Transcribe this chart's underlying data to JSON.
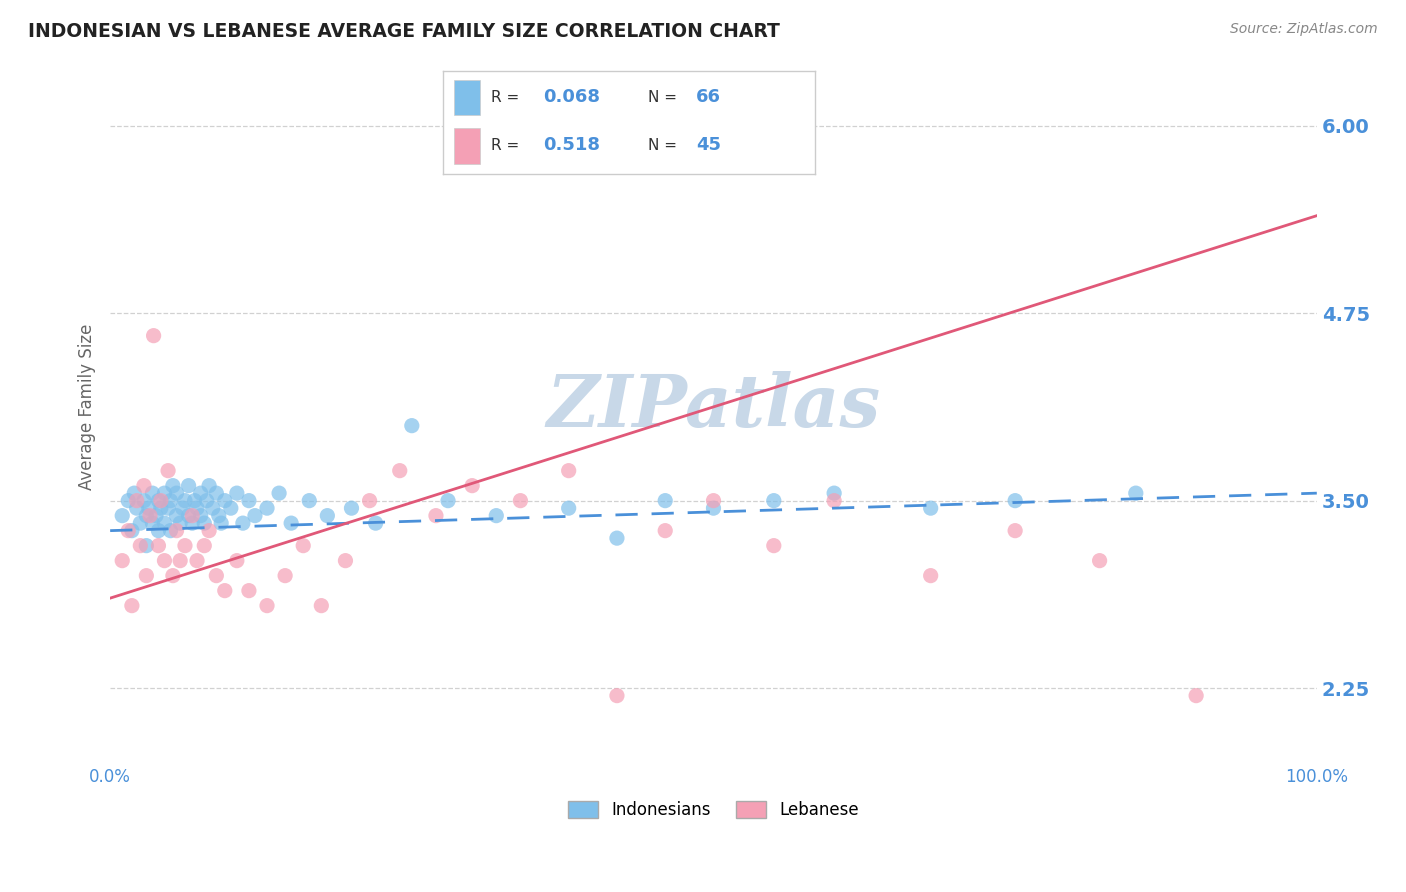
{
  "title": "INDONESIAN VS LEBANESE AVERAGE FAMILY SIZE CORRELATION CHART",
  "source_text": "Source: ZipAtlas.com",
  "ylabel": "Average Family Size",
  "ytick_values": [
    2.25,
    3.5,
    4.75,
    6.0
  ],
  "ytick_labels": [
    "2.25",
    "3.50",
    "4.75",
    "6.00"
  ],
  "xlim": [
    0.0,
    1.0
  ],
  "ylim": [
    1.75,
    6.5
  ],
  "color_blue": "#7fbfea",
  "color_pink": "#f4a0b5",
  "color_blue_line": "#4a90d9",
  "color_pink_line": "#e05878",
  "color_axis_text": "#4a90d9",
  "color_title": "#222222",
  "color_source": "#888888",
  "color_grid": "#cccccc",
  "color_legend_border": "#cccccc",
  "legend_r1": "0.068",
  "legend_n1": "66",
  "legend_r2": "0.518",
  "legend_n2": "45",
  "indonesian_x": [
    0.01,
    0.015,
    0.018,
    0.02,
    0.022,
    0.025,
    0.028,
    0.03,
    0.03,
    0.032,
    0.035,
    0.035,
    0.038,
    0.04,
    0.04,
    0.042,
    0.045,
    0.045,
    0.048,
    0.05,
    0.05,
    0.052,
    0.055,
    0.055,
    0.058,
    0.06,
    0.062,
    0.065,
    0.065,
    0.068,
    0.07,
    0.072,
    0.075,
    0.075,
    0.078,
    0.08,
    0.082,
    0.085,
    0.088,
    0.09,
    0.092,
    0.095,
    0.1,
    0.105,
    0.11,
    0.115,
    0.12,
    0.13,
    0.14,
    0.15,
    0.165,
    0.18,
    0.2,
    0.22,
    0.25,
    0.28,
    0.32,
    0.38,
    0.42,
    0.46,
    0.5,
    0.55,
    0.6,
    0.68,
    0.75,
    0.85
  ],
  "indonesian_y": [
    3.4,
    3.5,
    3.3,
    3.55,
    3.45,
    3.35,
    3.5,
    3.4,
    3.2,
    3.45,
    3.35,
    3.55,
    3.4,
    3.3,
    3.5,
    3.45,
    3.55,
    3.35,
    3.45,
    3.5,
    3.3,
    3.6,
    3.4,
    3.55,
    3.35,
    3.45,
    3.5,
    3.4,
    3.6,
    3.35,
    3.5,
    3.45,
    3.55,
    3.4,
    3.35,
    3.5,
    3.6,
    3.45,
    3.55,
    3.4,
    3.35,
    3.5,
    3.45,
    3.55,
    3.35,
    3.5,
    3.4,
    3.45,
    3.55,
    3.35,
    3.5,
    3.4,
    3.45,
    3.35,
    4.0,
    3.5,
    3.4,
    3.45,
    3.25,
    3.5,
    3.45,
    3.5,
    3.55,
    3.45,
    3.5,
    3.55
  ],
  "lebanese_x": [
    0.01,
    0.015,
    0.018,
    0.022,
    0.025,
    0.028,
    0.03,
    0.033,
    0.036,
    0.04,
    0.042,
    0.045,
    0.048,
    0.052,
    0.055,
    0.058,
    0.062,
    0.068,
    0.072,
    0.078,
    0.082,
    0.088,
    0.095,
    0.105,
    0.115,
    0.13,
    0.145,
    0.16,
    0.175,
    0.195,
    0.215,
    0.24,
    0.27,
    0.3,
    0.34,
    0.38,
    0.42,
    0.46,
    0.5,
    0.55,
    0.6,
    0.68,
    0.75,
    0.82,
    0.9
  ],
  "lebanese_y": [
    3.1,
    3.3,
    2.8,
    3.5,
    3.2,
    3.6,
    3.0,
    3.4,
    4.6,
    3.2,
    3.5,
    3.1,
    3.7,
    3.0,
    3.3,
    3.1,
    3.2,
    3.4,
    3.1,
    3.2,
    3.3,
    3.0,
    2.9,
    3.1,
    2.9,
    2.8,
    3.0,
    3.2,
    2.8,
    3.1,
    3.5,
    3.7,
    3.4,
    3.6,
    3.5,
    3.7,
    2.2,
    3.3,
    3.5,
    3.2,
    3.5,
    3.0,
    3.3,
    3.1,
    2.2
  ],
  "blue_line_x": [
    0.0,
    1.0
  ],
  "blue_line_y": [
    3.3,
    3.55
  ],
  "pink_line_x": [
    0.0,
    1.0
  ],
  "pink_line_y": [
    2.85,
    5.4
  ],
  "watermark_text": "ZIPatlas",
  "watermark_color": "#c8d8e8",
  "bottom_legend_labels": [
    "Indonesians",
    "Lebanese"
  ]
}
